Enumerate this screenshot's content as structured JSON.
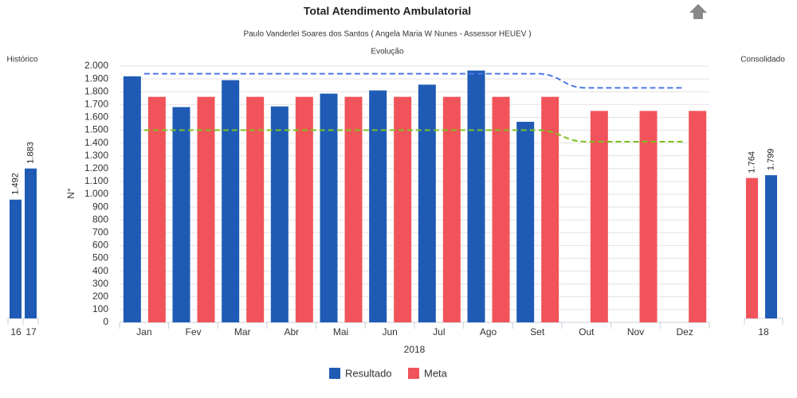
{
  "chart_data": [
    {
      "type": "bar",
      "title": "Total Atendimento Ambulatorial",
      "subtitle": "Paulo Vanderlei Soares dos Santos ( Angela Maria W Nunes - Assessor HEUEV )",
      "caption": "Evolução",
      "y_label": "N°",
      "x_label": "2018",
      "categories": [
        "Jan",
        "Fev",
        "Mar",
        "Abr",
        "Mai",
        "Jun",
        "Jul",
        "Ago",
        "Set",
        "Out",
        "Nov",
        "Dez"
      ],
      "series": [
        {
          "name": "Resultado",
          "color": "#1f5bb5",
          "values": [
            1920,
            1680,
            1890,
            1685,
            1785,
            1810,
            1855,
            1965,
            1565,
            null,
            null,
            null
          ]
        },
        {
          "name": "Meta",
          "color": "#f0545a",
          "values": [
            1760,
            1760,
            1760,
            1760,
            1760,
            1760,
            1760,
            1760,
            1760,
            1650,
            1650,
            1650
          ]
        }
      ],
      "lines": [
        {
          "color": "#4a78e8",
          "values": [
            1940,
            1940,
            1940,
            1940,
            1940,
            1940,
            1940,
            1940,
            1940,
            1830,
            1830,
            1830
          ]
        },
        {
          "color": "#7cc21c",
          "values": [
            1500,
            1500,
            1500,
            1500,
            1500,
            1500,
            1500,
            1500,
            1500,
            1410,
            1410,
            1410
          ]
        }
      ],
      "ylim": [
        0,
        2000
      ],
      "yticks": [
        0,
        100,
        200,
        300,
        400,
        500,
        600,
        700,
        800,
        900,
        {
          "value": 1000,
          "label": "1.000"
        },
        {
          "value": 1100,
          "label": "1.100"
        },
        {
          "value": 1200,
          "label": "1.200"
        },
        {
          "value": 1300,
          "label": "1.300"
        },
        {
          "value": 1400,
          "label": "1.400"
        },
        {
          "value": 1500,
          "label": "1.500"
        },
        {
          "value": 1600,
          "label": "1.600"
        },
        {
          "value": 1700,
          "label": "1.700"
        },
        {
          "value": 1800,
          "label": "1.800"
        },
        {
          "value": 1900,
          "label": "1.900"
        },
        {
          "value": 2000,
          "label": "2.000"
        }
      ],
      "grid": true
    },
    {
      "type": "bar",
      "title": "Histórico",
      "categories": [
        "16",
        "17"
      ],
      "color": "#1f5bb5",
      "values": [
        1492,
        1883
      ],
      "value_labels": [
        "1.492",
        "1.883"
      ]
    },
    {
      "type": "bar",
      "title": "Consolidado",
      "categories": [
        "18"
      ],
      "series": [
        {
          "color": "#f0545a",
          "values": [
            1764
          ],
          "value_labels": [
            "1.764"
          ]
        },
        {
          "color": "#1f5bb5",
          "values": [
            1799
          ],
          "value_labels": [
            "1.799"
          ]
        }
      ]
    }
  ]
}
